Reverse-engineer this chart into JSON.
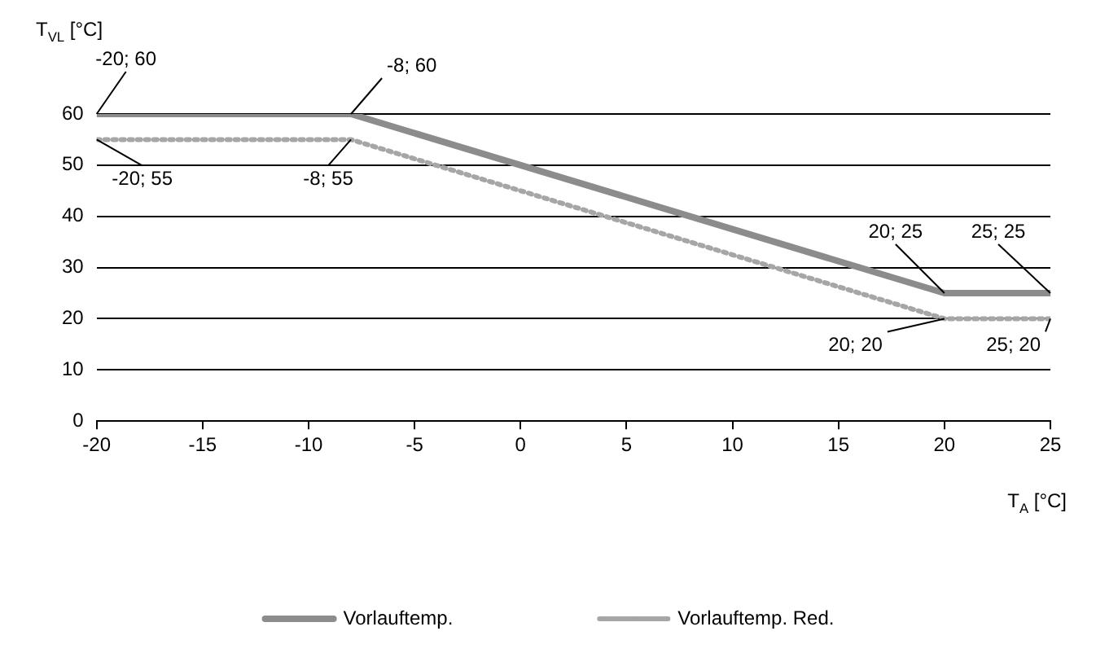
{
  "chart_data": {
    "type": "line",
    "xlabel": "T$_{A}$ [°C]",
    "ylabel": "T$_{VL}$ [°C]",
    "xlim": [
      -20,
      25
    ],
    "xticks": [
      -20,
      -15,
      -10,
      -5,
      0,
      5,
      10,
      15,
      20,
      25
    ],
    "ylim": [
      0,
      60
    ],
    "yticks": [
      0,
      10,
      20,
      30,
      40,
      50,
      60
    ],
    "grid": "y",
    "legend": "bottom",
    "marker": "none",
    "series": [
      {
        "name": "Vorlauftemp.",
        "color": "#8c8c8c",
        "x": [
          -20,
          -8,
          20,
          25
        ],
        "values": [
          60,
          60,
          25,
          25
        ],
        "line_style": "solid"
      },
      {
        "name": "Vorlauftemp. Red.",
        "color": "#a6a6a6",
        "x": [
          -20,
          -8,
          20,
          25
        ],
        "values": [
          55,
          55,
          20,
          20
        ],
        "line_style": "dotted"
      }
    ],
    "annotations": [
      {
        "text": "-20; 60",
        "x": -20,
        "y": 60
      },
      {
        "text": "-8; 60",
        "x": -8,
        "y": 60
      },
      {
        "text": "-20; 55",
        "x": -20,
        "y": 55
      },
      {
        "text": "-8; 55",
        "x": -8,
        "y": 55
      },
      {
        "text": "20; 25",
        "x": 20,
        "y": 25
      },
      {
        "text": "25; 25",
        "x": 25,
        "y": 25
      },
      {
        "text": "20; 20",
        "x": 20,
        "y": 20
      },
      {
        "text": "25; 20",
        "x": 25,
        "y": 20
      }
    ]
  }
}
